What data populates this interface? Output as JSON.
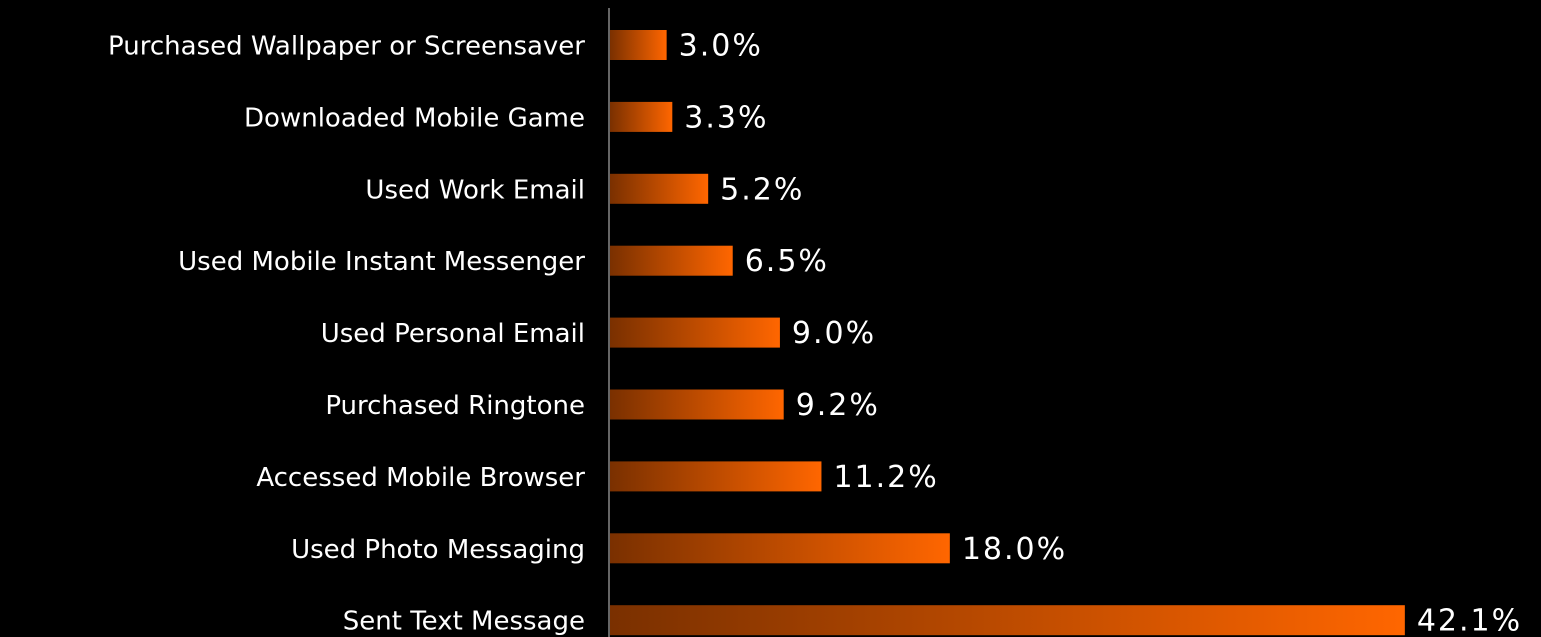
{
  "chart_data": {
    "type": "bar",
    "orientation": "horizontal",
    "categories": [
      "Purchased Wallpaper or Screensaver",
      "Downloaded Mobile Game",
      "Used Work Email",
      "Used Mobile Instant Messenger",
      "Used Personal Email",
      "Purchased Ringtone",
      "Accessed Mobile Browser",
      "Used Photo Messaging",
      "Sent Text Message"
    ],
    "values": [
      3.0,
      3.3,
      5.2,
      6.5,
      9.0,
      9.2,
      11.2,
      18.0,
      42.1
    ],
    "value_labels": [
      "3.0%",
      "3.3%",
      "5.2%",
      "6.5%",
      "9.0%",
      "9.2%",
      "11.2%",
      "18.0%",
      "42.1%"
    ],
    "color": "#ff6600"
  }
}
